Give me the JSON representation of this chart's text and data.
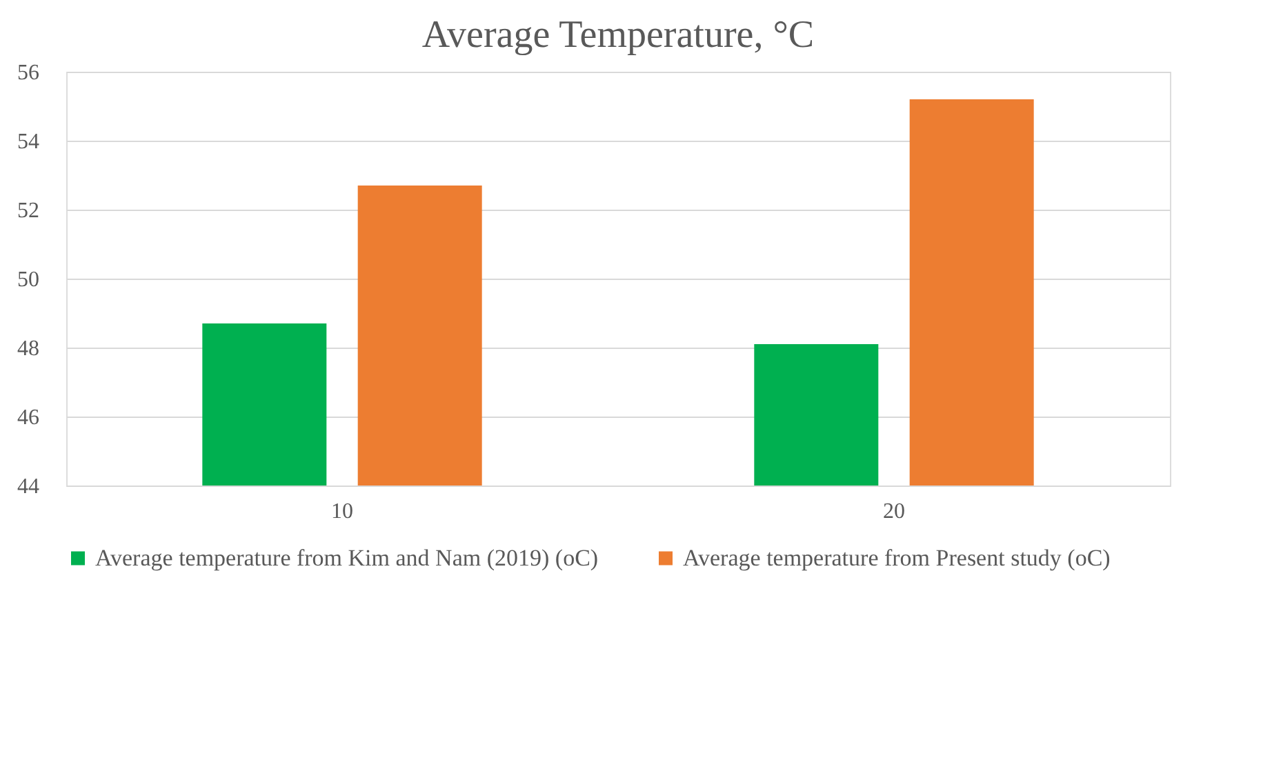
{
  "chart_data": {
    "type": "bar",
    "title": "Average Temperature, °C",
    "categories": [
      "10",
      "20"
    ],
    "series": [
      {
        "name": "Average temperature from Kim and Nam (2019) (oC)",
        "color": "#00b050",
        "values": [
          48.7,
          48.1
        ]
      },
      {
        "name": "Average temperature from Present study (oC)",
        "color": "#ed7d31",
        "values": [
          52.7,
          55.2
        ]
      }
    ],
    "ylim": [
      44,
      56
    ],
    "yticks": [
      44,
      46,
      48,
      50,
      52,
      54,
      56
    ],
    "grid": "y",
    "legend": "bottom"
  }
}
